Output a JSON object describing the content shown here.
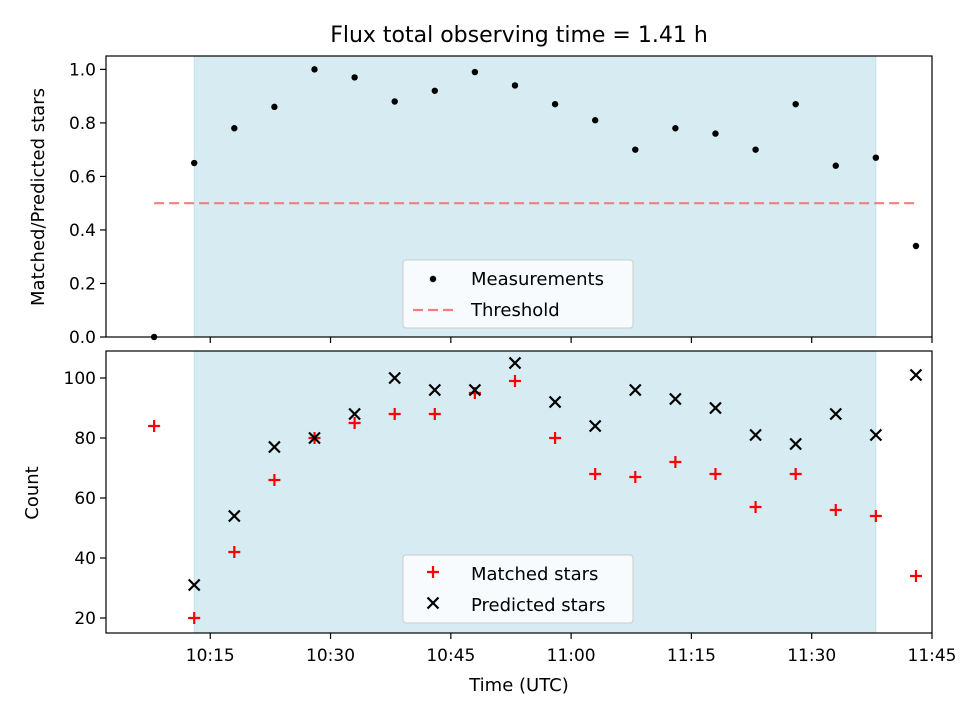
{
  "chart_data": [
    {
      "type": "scatter",
      "title": "Flux total observing time = 1.41 h",
      "xlabel": "",
      "ylabel": "Matched/Predicted stars",
      "xlim": [
        "10:02",
        "11:45"
      ],
      "ylim": [
        0,
        1.05
      ],
      "yticks": [
        "0.0",
        "0.2",
        "0.4",
        "0.6",
        "0.8",
        "1.0"
      ],
      "shaded_span": {
        "from": "10:13",
        "to": "11:38",
        "color": "#add8e6"
      },
      "threshold": {
        "name": "Threshold",
        "y": 0.5,
        "from": "10:08",
        "to": "11:43",
        "color": "#f08080"
      },
      "legend": {
        "position": "lower center",
        "entries": [
          "Measurements",
          "Threshold"
        ]
      },
      "series": [
        {
          "name": "Measurements",
          "marker": "dot",
          "color": "#000000",
          "points": [
            [
              "10:08",
              0.0
            ],
            [
              "10:13",
              0.65
            ],
            [
              "10:18",
              0.78
            ],
            [
              "10:23",
              0.86
            ],
            [
              "10:28",
              1.0
            ],
            [
              "10:33",
              0.97
            ],
            [
              "10:38",
              0.88
            ],
            [
              "10:43",
              0.92
            ],
            [
              "10:48",
              0.99
            ],
            [
              "10:53",
              0.94
            ],
            [
              "10:58",
              0.87
            ],
            [
              "11:03",
              0.81
            ],
            [
              "11:08",
              0.7
            ],
            [
              "11:13",
              0.78
            ],
            [
              "11:18",
              0.76
            ],
            [
              "11:23",
              0.7
            ],
            [
              "11:28",
              0.87
            ],
            [
              "11:33",
              0.64
            ],
            [
              "11:38",
              0.67
            ],
            [
              "11:43",
              0.34
            ]
          ]
        }
      ]
    },
    {
      "type": "scatter",
      "title": "",
      "xlabel": "Time (UTC)",
      "ylabel": "Count",
      "xlim": [
        "10:02",
        "11:45"
      ],
      "ylim": [
        15,
        109
      ],
      "yticks": [
        "20",
        "40",
        "60",
        "80",
        "100"
      ],
      "xticks": [
        "10:15",
        "10:30",
        "10:45",
        "11:00",
        "11:15",
        "11:30",
        "11:45"
      ],
      "shaded_span": {
        "from": "10:13",
        "to": "11:38",
        "color": "#add8e6"
      },
      "legend": {
        "position": "lower center",
        "entries": [
          "Matched stars",
          "Predicted stars"
        ]
      },
      "series": [
        {
          "name": "Matched stars",
          "marker": "plus",
          "color": "#ff0000",
          "points": [
            [
              "10:08",
              84
            ],
            [
              "10:13",
              20
            ],
            [
              "10:18",
              42
            ],
            [
              "10:23",
              66
            ],
            [
              "10:28",
              80
            ],
            [
              "10:33",
              85
            ],
            [
              "10:38",
              88
            ],
            [
              "10:43",
              88
            ],
            [
              "10:48",
              95
            ],
            [
              "10:53",
              99
            ],
            [
              "10:58",
              80
            ],
            [
              "11:03",
              68
            ],
            [
              "11:08",
              67
            ],
            [
              "11:13",
              72
            ],
            [
              "11:18",
              68
            ],
            [
              "11:23",
              57
            ],
            [
              "11:28",
              68
            ],
            [
              "11:33",
              56
            ],
            [
              "11:38",
              54
            ],
            [
              "11:43",
              34
            ]
          ]
        },
        {
          "name": "Predicted stars",
          "marker": "x",
          "color": "#000000",
          "points": [
            [
              "10:13",
              31
            ],
            [
              "10:18",
              54
            ],
            [
              "10:23",
              77
            ],
            [
              "10:28",
              80
            ],
            [
              "10:33",
              88
            ],
            [
              "10:38",
              100
            ],
            [
              "10:43",
              96
            ],
            [
              "10:48",
              96
            ],
            [
              "10:53",
              105
            ],
            [
              "10:58",
              92
            ],
            [
              "11:03",
              84
            ],
            [
              "11:08",
              96
            ],
            [
              "11:13",
              93
            ],
            [
              "11:18",
              90
            ],
            [
              "11:23",
              81
            ],
            [
              "11:28",
              78
            ],
            [
              "11:33",
              88
            ],
            [
              "11:38",
              81
            ],
            [
              "11:43",
              101
            ]
          ]
        }
      ]
    }
  ]
}
